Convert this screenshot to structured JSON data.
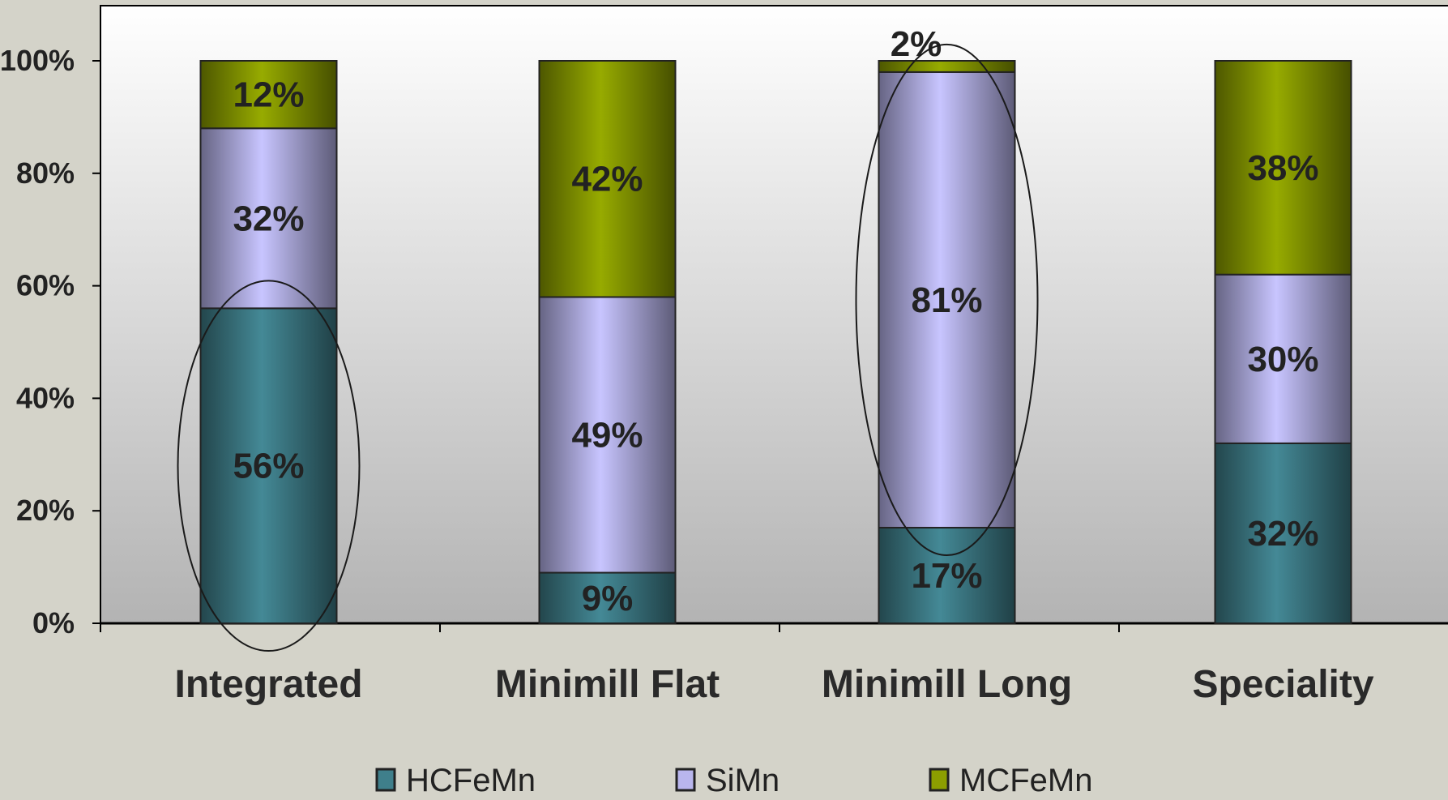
{
  "chart_data": {
    "type": "bar",
    "stacked": true,
    "percent_stacked": true,
    "title": "",
    "xlabel": "",
    "ylabel": "",
    "ylim": [
      0,
      100
    ],
    "yticks": [
      "0%",
      "20%",
      "40%",
      "60%",
      "80%",
      "100%"
    ],
    "categories": [
      "Integrated",
      "Minimill Flat",
      "Minimill Long",
      "Speciality"
    ],
    "series": [
      {
        "name": "HCFeMn",
        "values": [
          56,
          9,
          17,
          32
        ],
        "labels": [
          "56%",
          "9%",
          "17%",
          "32%"
        ],
        "color": "#3f7f8b"
      },
      {
        "name": "SiMn",
        "values": [
          32,
          49,
          81,
          30
        ],
        "labels": [
          "32%",
          "49%",
          "81%",
          "30%"
        ],
        "color": "#b9b6ee"
      },
      {
        "name": "MCFeMn",
        "values": [
          12,
          42,
          2,
          38
        ],
        "labels": [
          "12%",
          "42%",
          "2%",
          "38%"
        ],
        "color": "#8c9e00"
      }
    ],
    "legend_position": "bottom",
    "grid": false,
    "highlight_ellipses": [
      {
        "category": "Integrated",
        "series": "HCFeMn"
      },
      {
        "category": "Minimill Long",
        "series": "SiMn"
      }
    ]
  }
}
